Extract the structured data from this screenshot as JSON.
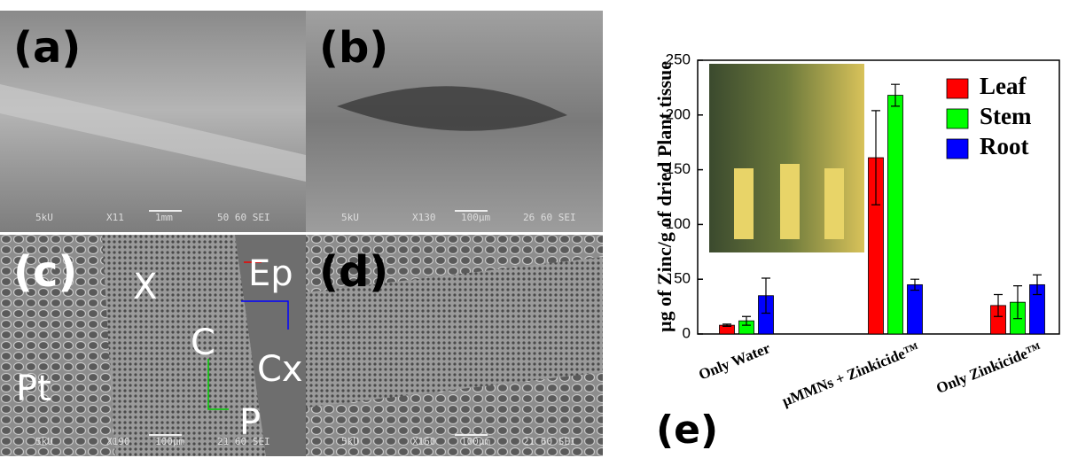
{
  "panels": [
    {
      "label": "(a)",
      "info": [
        "5kU",
        "X11",
        "1mm",
        "50 60 SEI"
      ]
    },
    {
      "label": "(b)",
      "info": [
        "5kU",
        "X130",
        "100µm",
        "26 60 SEI"
      ]
    },
    {
      "label": "(c)",
      "info": [
        "5kU",
        "X190",
        "100µm",
        "21 60 SEI"
      ],
      "annotations": [
        "X",
        "Ep",
        "C",
        "Cx",
        "Pt",
        "P"
      ]
    },
    {
      "label": "(d)",
      "info": [
        "5kU",
        "X160",
        "100µm",
        "21 60 SEI"
      ]
    }
  ],
  "chart_data": {
    "type": "bar",
    "panel_label": "(e)",
    "y_label": "µg of Zinc/g of dried Plant tissue",
    "categories": [
      "Only Water",
      "µMMNs + Zinkicide™",
      "Only Zinkicide™"
    ],
    "series": [
      {
        "name": "Leaf",
        "color": "#ff0000",
        "values": [
          8,
          161,
          26
        ],
        "errors": [
          1,
          43,
          10
        ]
      },
      {
        "name": "Stem",
        "color": "#00ff00",
        "values": [
          12,
          218,
          29
        ],
        "errors": [
          4,
          10,
          15
        ]
      },
      {
        "name": "Root",
        "color": "#0000ff",
        "values": [
          35,
          45,
          45
        ],
        "errors": [
          16,
          5,
          9
        ]
      }
    ],
    "ylim": [
      0,
      250
    ],
    "yticks": [
      0,
      50,
      100,
      150,
      200,
      250
    ],
    "legend": "upper right"
  }
}
